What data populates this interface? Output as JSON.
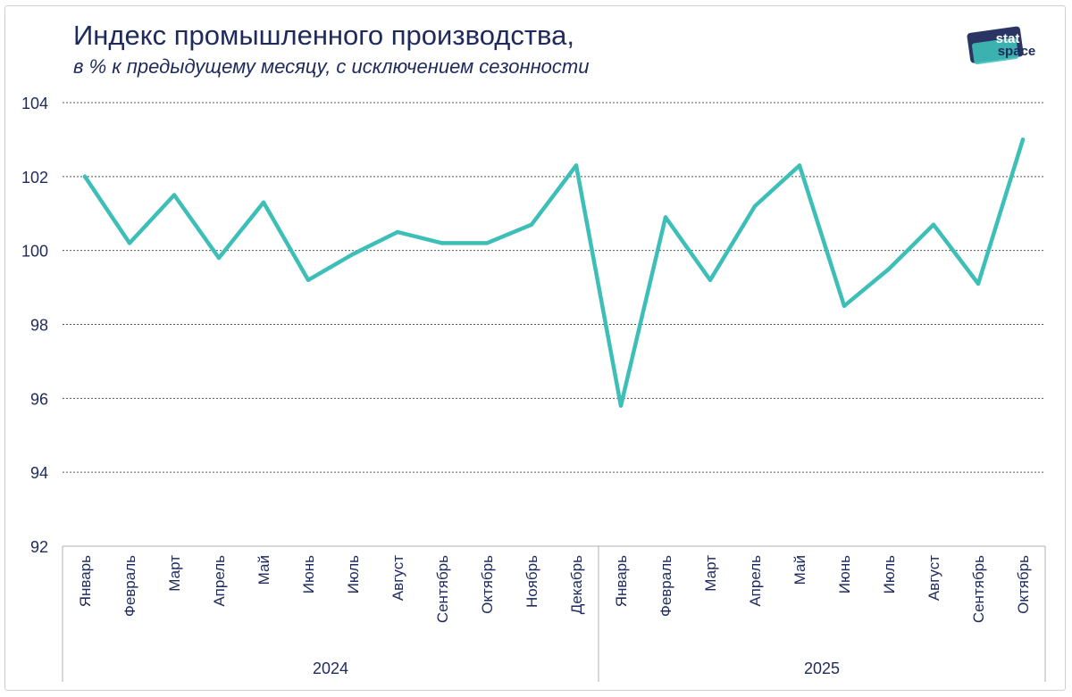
{
  "title": "Индекс промышленного производства,",
  "subtitle": "в % к предыдущему месяцу, с исключением сезонности",
  "logo": {
    "text_top": "stat",
    "text_bottom": "space",
    "color": "#1f2a5c",
    "accent": "#3dbfb8"
  },
  "colors": {
    "line": "#3dbfb8",
    "text": "#1f2a5c",
    "grid": "#555555",
    "axis": "#b0b0b0"
  },
  "chart_data": {
    "type": "line",
    "title": "Индекс промышленного производства,",
    "subtitle": "в % к предыдущему месяцу, с исключением сезонности",
    "ylim": [
      92,
      104
    ],
    "yticks": [
      "92",
      "94",
      "96",
      "98",
      "100",
      "102",
      "104"
    ],
    "grid": true,
    "categories": [
      "Январь",
      "Февраль",
      "Март",
      "Апрель",
      "Май",
      "Июнь",
      "Июль",
      "Август",
      "Сентябрь",
      "Октябрь",
      "Ноябрь",
      "Декабрь",
      "Январь",
      "Февраль",
      "Март",
      "Апрель",
      "Май",
      "Июнь",
      "Июль",
      "Август",
      "Сентябрь",
      "Октябрь"
    ],
    "groups": [
      {
        "label": "2024",
        "count": 12
      },
      {
        "label": "2025",
        "count": 10
      }
    ],
    "series": [
      {
        "values": [
          102.0,
          100.2,
          101.5,
          99.8,
          101.3,
          99.2,
          99.9,
          100.5,
          100.2,
          100.2,
          100.7,
          102.3,
          95.8,
          100.9,
          99.2,
          101.2,
          102.3,
          98.5,
          99.5,
          100.7,
          99.1,
          103.0
        ]
      }
    ]
  }
}
